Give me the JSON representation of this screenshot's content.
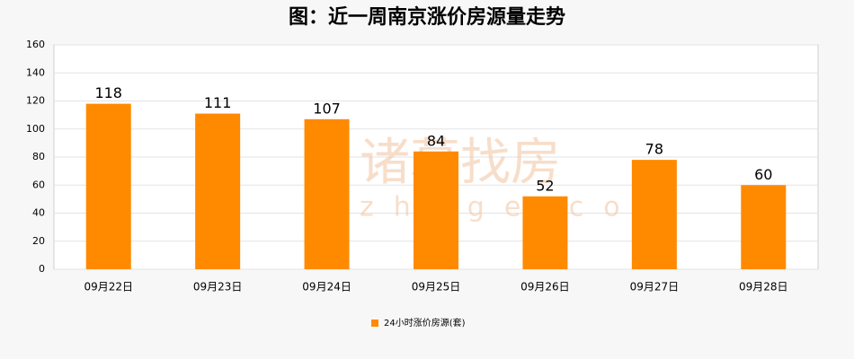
{
  "chart_data": {
    "type": "bar",
    "title": "图：近一周南京涨价房源量走势",
    "categories": [
      "09月22日",
      "09月23日",
      "09月24日",
      "09月25日",
      "09月26日",
      "09月27日",
      "09月28日"
    ],
    "series": [
      {
        "name": "24小时涨价房源(套)",
        "color": "#ff8a00",
        "values": [
          118,
          111,
          107,
          84,
          52,
          78,
          60
        ]
      }
    ],
    "ylim": [
      0,
      160
    ],
    "yticks": [
      0,
      20,
      40,
      60,
      80,
      100,
      120,
      140,
      160
    ],
    "grid": true,
    "legend": "bottom",
    "watermark": [
      "诸葛找房",
      "zhuge.com"
    ]
  }
}
